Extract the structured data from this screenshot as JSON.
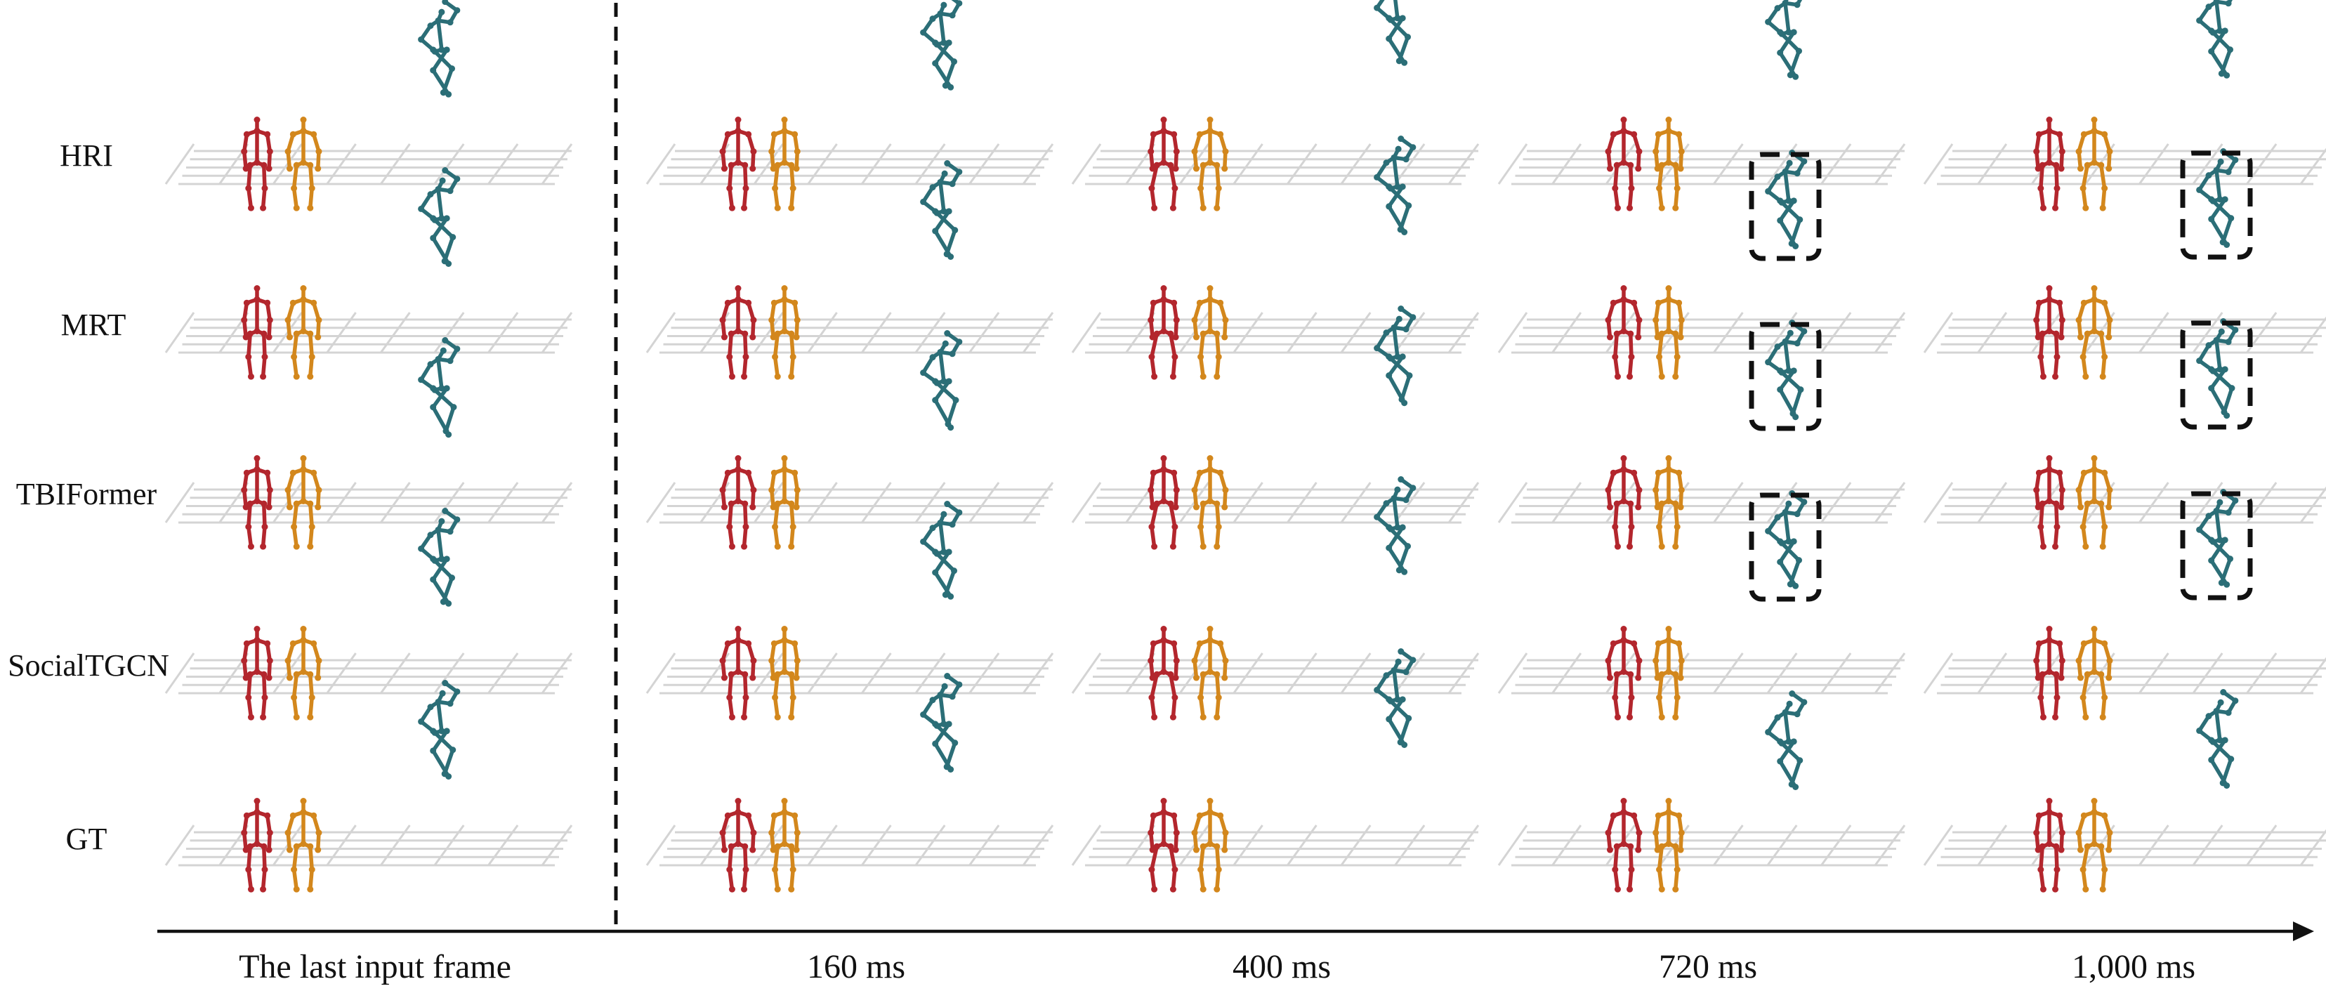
{
  "rows": [
    {
      "id": "hri",
      "label": "HRI"
    },
    {
      "id": "mrt",
      "label": "MRT"
    },
    {
      "id": "tbiformer",
      "label": "TBIFormer"
    },
    {
      "id": "socialtgcn",
      "label": "SocialTGCN"
    },
    {
      "id": "gt",
      "label": "GT"
    }
  ],
  "columns": [
    {
      "id": "input",
      "label": "The last input frame"
    },
    {
      "id": "t160",
      "label": "160 ms"
    },
    {
      "id": "t400",
      "label": "400 ms"
    },
    {
      "id": "t720",
      "label": "720 ms"
    },
    {
      "id": "t1000",
      "label": "1,000 ms"
    }
  ],
  "highlighted_cells": [
    {
      "row": "mrt",
      "column": "t720"
    },
    {
      "row": "mrt",
      "column": "t1000"
    },
    {
      "row": "tbiformer",
      "column": "t720"
    },
    {
      "row": "tbiformer",
      "column": "t1000"
    },
    {
      "row": "socialtgcn",
      "column": "t720"
    },
    {
      "row": "socialtgcn",
      "column": "t1000"
    }
  ],
  "colors": {
    "person_red": "#b3262d",
    "person_orange": "#d3871c",
    "person_teal": "#2b6e77",
    "grid": "#d4d4d4",
    "ink": "#111111"
  }
}
